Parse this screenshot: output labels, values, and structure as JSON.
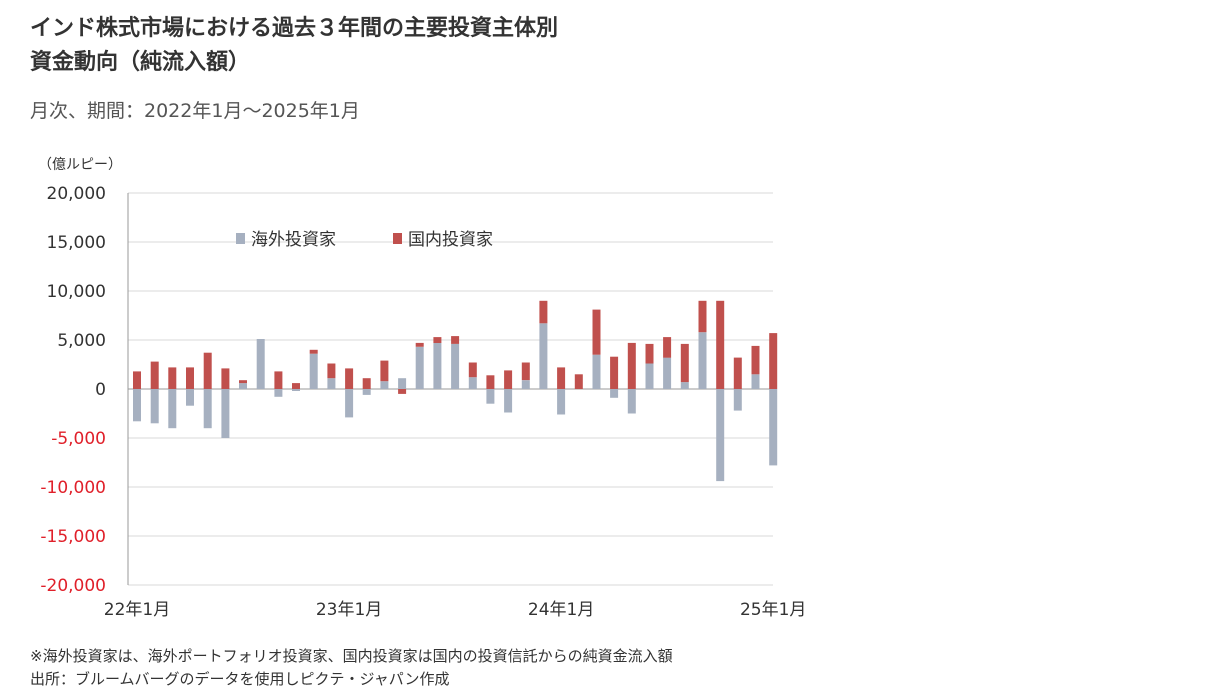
{
  "title_lines": [
    "インド株式市場における過去３年間の主要投資主体別",
    "資金動向（純流入額）"
  ],
  "subtitle": "月次、期間：2022年1月～2025年1月",
  "unit_label": "（億ルピー）",
  "notes": [
    "※海外投資家は、海外ポートフォリオ投資家、国内投資家は国内の投資信託からの純資金流入額",
    "出所：ブルームバーグのデータを使用しピクテ・ジャパン作成"
  ],
  "colors": {
    "foreign": "#a6b0c0",
    "domestic": "#c0504d",
    "negative_tick": "#e0202a",
    "grid": "#d9d9d9"
  },
  "chart_data": {
    "type": "bar",
    "stacked": true,
    "legend_position": "top",
    "grid": true,
    "ylim": [
      -20000,
      20000
    ],
    "yticks": [
      20000,
      15000,
      10000,
      5000,
      0,
      -5000,
      -10000,
      -15000,
      -20000
    ],
    "ytick_labels": [
      "20,000",
      "15,000",
      "10,000",
      "5,000",
      "0",
      "-5,000",
      "-10,000",
      "-15,000",
      "-20,000"
    ],
    "xtick_labels": [
      {
        "index": 0,
        "label": "22年1月"
      },
      {
        "index": 12,
        "label": "23年1月"
      },
      {
        "index": 24,
        "label": "24年1月"
      },
      {
        "index": 36,
        "label": "25年1月"
      }
    ],
    "categories": [
      "2022-01",
      "2022-02",
      "2022-03",
      "2022-04",
      "2022-05",
      "2022-06",
      "2022-07",
      "2022-08",
      "2022-09",
      "2022-10",
      "2022-11",
      "2022-12",
      "2023-01",
      "2023-02",
      "2023-03",
      "2023-04",
      "2023-05",
      "2023-06",
      "2023-07",
      "2023-08",
      "2023-09",
      "2023-10",
      "2023-11",
      "2023-12",
      "2024-01",
      "2024-02",
      "2024-03",
      "2024-04",
      "2024-05",
      "2024-06",
      "2024-07",
      "2024-08",
      "2024-09",
      "2024-10",
      "2024-11",
      "2024-12",
      "2025-01"
    ],
    "series": [
      {
        "name": "海外投資家",
        "color": "#a6b0c0",
        "values": [
          -3300,
          -3500,
          -4000,
          -1700,
          -4000,
          -5000,
          600,
          5100,
          -800,
          -200,
          3600,
          1100,
          -2900,
          -600,
          800,
          1100,
          4300,
          4700,
          4600,
          1200,
          -1500,
          -2400,
          900,
          6700,
          -2600,
          0,
          3500,
          -900,
          -2500,
          2600,
          3200,
          700,
          5800,
          -9400,
          -2200,
          1500,
          -7800
        ]
      },
      {
        "name": "国内投資家",
        "color": "#c0504d",
        "values": [
          1800,
          2800,
          2200,
          2200,
          3700,
          2100,
          300,
          0,
          1800,
          600,
          400,
          1500,
          2100,
          1100,
          2100,
          -500,
          400,
          600,
          800,
          1500,
          1400,
          1900,
          1800,
          2300,
          2200,
          1500,
          4600,
          3300,
          4700,
          2000,
          2100,
          3900,
          3200,
          9000,
          3200,
          2900,
          5700
        ]
      }
    ]
  }
}
